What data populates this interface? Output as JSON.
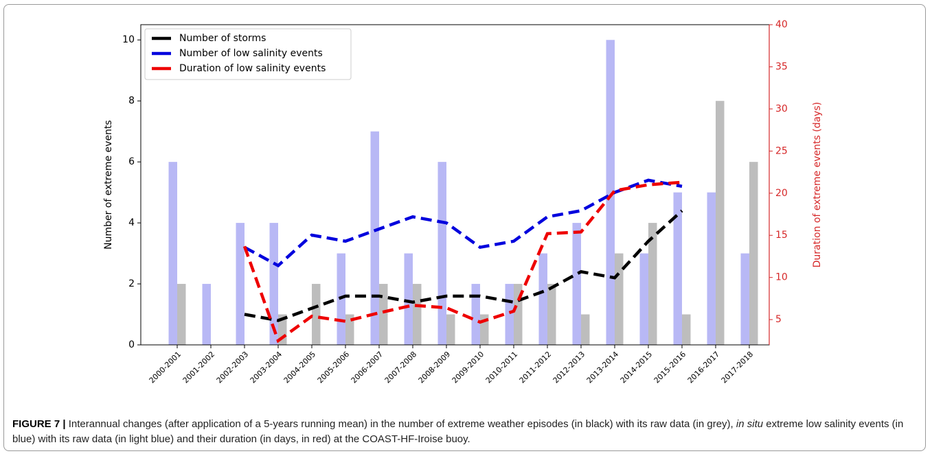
{
  "chart_data": {
    "type": "bar-line",
    "categories": [
      "2000-2001",
      "2001-2002",
      "2002-2003",
      "2003-2004",
      "2004-2005",
      "2005-2006",
      "2006-2007",
      "2007-2008",
      "2008-2009",
      "2009-2010",
      "2010-2011",
      "2011-2012",
      "2012-2013",
      "2013-2014",
      "2014-2015",
      "2015-2016",
      "2016-2017",
      "2017-2018"
    ],
    "y_label": "Number of extreme events",
    "y2_label": "Duration of extreme events (days)",
    "y2_color": "#d62728",
    "ylim": [
      0,
      10.5
    ],
    "yticks": [
      0,
      2,
      4,
      6,
      8,
      10
    ],
    "y2lim": [
      2,
      40
    ],
    "y2ticks": [
      5,
      10,
      15,
      20,
      25,
      30,
      35,
      40
    ],
    "bars": [
      {
        "color": "#b8b8f5",
        "values": [
          6,
          2,
          4,
          4,
          0,
          3,
          7,
          3,
          6,
          2,
          2,
          3,
          4,
          10,
          3,
          5,
          5,
          3
        ]
      },
      {
        "color": "#bdbdbd",
        "values": [
          2,
          0,
          0,
          1,
          2,
          1,
          2,
          2,
          1,
          1,
          2,
          2,
          1,
          3,
          4,
          1,
          8,
          6
        ]
      }
    ],
    "series": [
      {
        "name": "Number of storms",
        "color": "#000000",
        "values": [
          null,
          null,
          1.0,
          0.8,
          1.2,
          1.6,
          1.6,
          1.4,
          1.6,
          1.6,
          1.4,
          1.8,
          2.4,
          2.2,
          3.4,
          4.4,
          null,
          null
        ]
      },
      {
        "name": "Number of low salinity events",
        "color": "#0000dd",
        "values": [
          null,
          null,
          3.2,
          2.6,
          3.6,
          3.4,
          3.8,
          4.2,
          4.0,
          3.2,
          3.4,
          4.2,
          4.4,
          5.0,
          5.4,
          5.2,
          null,
          null
        ]
      },
      {
        "name": "Duration of low salinity events",
        "color": "#ee0000",
        "axis": "y2",
        "values": [
          null,
          null,
          13.7,
          2.5,
          5.4,
          4.8,
          5.8,
          6.7,
          6.4,
          4.7,
          6.0,
          15.2,
          15.4,
          20.3,
          21.0,
          21.3,
          null,
          null
        ]
      }
    ],
    "legend": "upper left"
  },
  "caption": {
    "label": "FIGURE 7 |",
    "text_1": " Interannual changes (after application of a 5-years running mean) in the number of extreme weather episodes (in black) with its raw data (in grey), ",
    "emphasis": "in situ",
    "text_2": " extreme low salinity events (in blue) with its raw data (in light blue) and their duration (in days, in red) at the COAST-HF-Iroise buoy."
  }
}
